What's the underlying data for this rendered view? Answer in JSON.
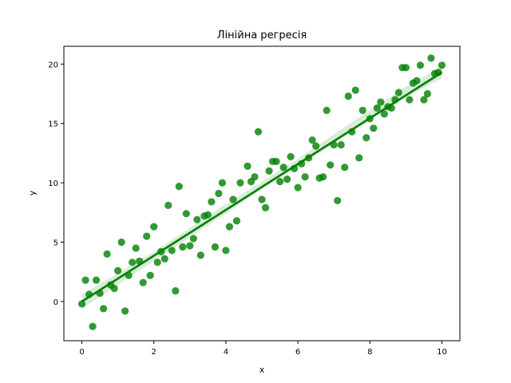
{
  "chart_data": {
    "type": "scatter",
    "title": "Лінійна регресія",
    "xlabel": "x",
    "ylabel": "y",
    "xlim": [
      -0.5,
      10.5
    ],
    "ylim": [
      -3.3,
      21.5
    ],
    "xticks": [
      0,
      2,
      4,
      6,
      8,
      10
    ],
    "yticks": [
      0,
      5,
      10,
      15,
      20
    ],
    "grid": false,
    "legend": "none",
    "point_color": "#008000",
    "line_color": "#008000",
    "band_color": "#008000",
    "regression": {
      "x0": 0,
      "y0": 0.0,
      "x1": 10,
      "y1": 19.3
    },
    "band": {
      "x": [
        0,
        1,
        2,
        3,
        4,
        5,
        6,
        7,
        8,
        9,
        10
      ],
      "low": [
        -0.6,
        1.4,
        3.4,
        5.4,
        7.4,
        9.5,
        11.4,
        13.3,
        15.3,
        17.2,
        18.8
      ],
      "high": [
        0.6,
        2.4,
        4.2,
        6.2,
        8.2,
        10.1,
        12.0,
        14.1,
        16.1,
        18.1,
        19.8
      ]
    },
    "points": [
      [
        0.0,
        -0.2
      ],
      [
        0.1,
        1.8
      ],
      [
        0.2,
        0.6
      ],
      [
        0.3,
        -2.1
      ],
      [
        0.4,
        1.8
      ],
      [
        0.5,
        0.7
      ],
      [
        0.6,
        -0.6
      ],
      [
        0.7,
        4.0
      ],
      [
        0.8,
        1.4
      ],
      [
        0.9,
        1.1
      ],
      [
        1.0,
        2.6
      ],
      [
        1.1,
        5.0
      ],
      [
        1.2,
        -0.8
      ],
      [
        1.3,
        2.2
      ],
      [
        1.4,
        3.3
      ],
      [
        1.5,
        4.5
      ],
      [
        1.6,
        3.4
      ],
      [
        1.7,
        1.6
      ],
      [
        1.8,
        5.5
      ],
      [
        1.9,
        2.2
      ],
      [
        2.0,
        6.3
      ],
      [
        2.1,
        3.3
      ],
      [
        2.2,
        4.2
      ],
      [
        2.3,
        3.6
      ],
      [
        2.4,
        8.1
      ],
      [
        2.5,
        4.3
      ],
      [
        2.6,
        0.9
      ],
      [
        2.7,
        9.7
      ],
      [
        2.8,
        4.6
      ],
      [
        2.9,
        7.4
      ],
      [
        3.0,
        4.7
      ],
      [
        3.1,
        5.3
      ],
      [
        3.2,
        6.9
      ],
      [
        3.3,
        3.9
      ],
      [
        3.4,
        7.2
      ],
      [
        3.5,
        7.3
      ],
      [
        3.6,
        8.4
      ],
      [
        3.7,
        4.6
      ],
      [
        3.8,
        9.1
      ],
      [
        3.9,
        10.0
      ],
      [
        4.0,
        4.3
      ],
      [
        4.1,
        6.3
      ],
      [
        4.2,
        8.6
      ],
      [
        4.3,
        6.8
      ],
      [
        4.4,
        10.0
      ],
      [
        4.6,
        11.4
      ],
      [
        4.7,
        10.1
      ],
      [
        4.8,
        10.5
      ],
      [
        4.9,
        14.3
      ],
      [
        5.0,
        8.6
      ],
      [
        5.1,
        7.9
      ],
      [
        5.2,
        11.0
      ],
      [
        5.3,
        11.8
      ],
      [
        5.4,
        11.8
      ],
      [
        5.5,
        10.1
      ],
      [
        5.6,
        11.3
      ],
      [
        5.7,
        10.3
      ],
      [
        5.8,
        12.2
      ],
      [
        5.9,
        11.2
      ],
      [
        6.0,
        9.6
      ],
      [
        6.1,
        11.6
      ],
      [
        6.2,
        10.5
      ],
      [
        6.3,
        12.1
      ],
      [
        6.4,
        13.6
      ],
      [
        6.5,
        13.1
      ],
      [
        6.6,
        10.4
      ],
      [
        6.7,
        10.5
      ],
      [
        6.8,
        16.1
      ],
      [
        6.9,
        11.5
      ],
      [
        7.0,
        13.2
      ],
      [
        7.1,
        8.5
      ],
      [
        7.2,
        13.2
      ],
      [
        7.3,
        11.3
      ],
      [
        7.4,
        17.3
      ],
      [
        7.5,
        14.3
      ],
      [
        7.6,
        17.8
      ],
      [
        7.7,
        12.1
      ],
      [
        7.8,
        16.1
      ],
      [
        7.9,
        13.8
      ],
      [
        8.0,
        15.4
      ],
      [
        8.1,
        14.6
      ],
      [
        8.2,
        16.3
      ],
      [
        8.3,
        16.8
      ],
      [
        8.4,
        15.8
      ],
      [
        8.5,
        16.4
      ],
      [
        8.6,
        16.3
      ],
      [
        8.7,
        17.0
      ],
      [
        8.8,
        17.6
      ],
      [
        8.9,
        19.7
      ],
      [
        9.0,
        19.7
      ],
      [
        9.1,
        17.0
      ],
      [
        9.2,
        18.4
      ],
      [
        9.3,
        18.6
      ],
      [
        9.4,
        19.9
      ],
      [
        9.5,
        17.0
      ],
      [
        9.6,
        17.5
      ],
      [
        9.7,
        20.5
      ],
      [
        9.8,
        19.2
      ],
      [
        9.9,
        19.3
      ],
      [
        10.0,
        19.9
      ]
    ]
  }
}
